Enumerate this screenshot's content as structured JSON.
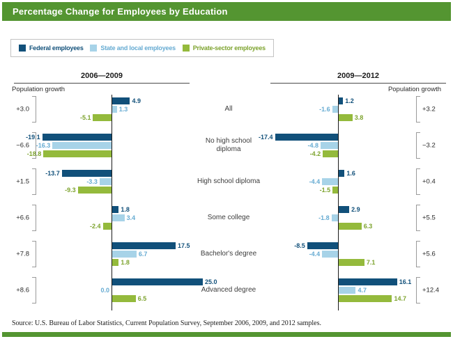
{
  "header": {
    "title": "Percentage Change for Employees by Education"
  },
  "source": "Source: U.S. Bureau of Labor Statistics, Current Population Survey, September 2006, 2009, and 2012 samples.",
  "chart_data": {
    "type": "bar",
    "orientation": "horizontal",
    "unit": "percent",
    "title": "Percentage Change for Employees by Education",
    "categories": [
      "All",
      "No high school diploma",
      "High school diploma",
      "Some college",
      "Bachelor's degree",
      "Advanced degree"
    ],
    "series": [
      {
        "key": "federal",
        "name": "Federal employees",
        "color": "#11507a",
        "text_color": "#11507a"
      },
      {
        "key": "state-local",
        "name": "State and local employees",
        "color": "#a7d3e8",
        "text_color": "#66abd2"
      },
      {
        "key": "private",
        "name": "Private-sector employees",
        "color": "#94ba3c",
        "text_color": "#7da32e"
      }
    ],
    "panels": [
      {
        "label": "2006—2009",
        "population_growth_label": "Population growth",
        "population_growth": [
          "+3.0",
          "−6.6",
          "+1.5",
          "+6.6",
          "+7.8",
          "+8.6"
        ],
        "values": [
          [
            4.9,
            -19.1,
            -13.7,
            1.8,
            17.5,
            25.0
          ],
          [
            1.3,
            -16.3,
            -3.3,
            3.4,
            6.7,
            0.0
          ],
          [
            -5.1,
            -18.8,
            -9.3,
            -2.4,
            1.8,
            6.5
          ]
        ]
      },
      {
        "label": "2009—2012",
        "population_growth_label": "Population growth",
        "population_growth": [
          "+3.2",
          "−3.2",
          "+0.4",
          "+5.5",
          "+5.6",
          "+12.4"
        ],
        "values": [
          [
            1.2,
            -17.4,
            1.6,
            2.9,
            -8.5,
            16.1
          ],
          [
            -1.6,
            -4.8,
            -4.4,
            -1.8,
            -4.4,
            4.7
          ],
          [
            3.8,
            -4.2,
            -1.5,
            6.3,
            7.1,
            14.7
          ]
        ]
      }
    ],
    "axis_range": [
      -25,
      25
    ],
    "legend_position": "top-left",
    "grid": false
  }
}
